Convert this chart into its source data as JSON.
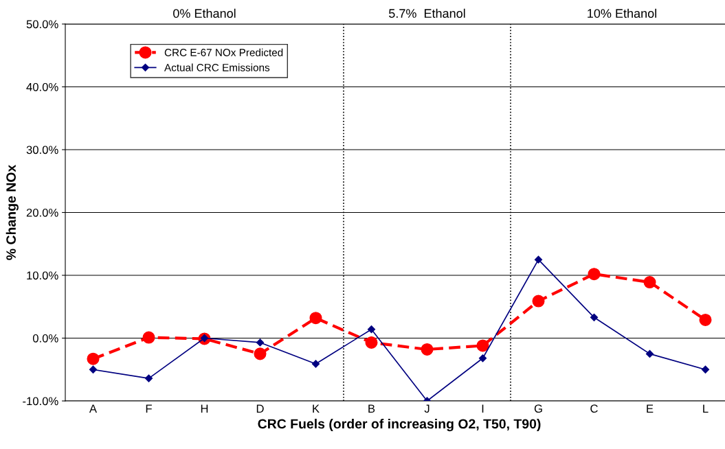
{
  "chart_data": {
    "type": "line",
    "xlabel": "CRC Fuels (order of increasing O2, T50, T90)",
    "ylabel": "% Change NOx",
    "categories": [
      "A",
      "F",
      "H",
      "D",
      "K",
      "B",
      "J",
      "I",
      "G",
      "C",
      "E",
      "L"
    ],
    "series": [
      {
        "name": "CRC E-67 NOx Predicted",
        "color": "#ff0000",
        "marker": "circle",
        "line_style": "dashed",
        "values": [
          -3.3,
          0.1,
          -0.1,
          -2.5,
          3.2,
          -0.7,
          -1.8,
          -1.2,
          5.9,
          10.2,
          8.9,
          2.9
        ]
      },
      {
        "name": "Actual CRC Emissions",
        "color": "#000080",
        "marker": "diamond",
        "line_style": "solid",
        "values": [
          -5.0,
          -6.4,
          0.0,
          -0.7,
          -4.1,
          1.4,
          -10.0,
          -3.2,
          12.5,
          3.3,
          -2.5,
          -5.0
        ]
      }
    ],
    "ylim": [
      -10,
      50
    ],
    "yticks": [
      {
        "value": -10,
        "label": "-10.0%"
      },
      {
        "value": 0,
        "label": "0.0%"
      },
      {
        "value": 10,
        "label": "10.0%"
      },
      {
        "value": 20,
        "label": "20.0%"
      },
      {
        "value": 30,
        "label": "30.0%"
      },
      {
        "value": 40,
        "label": "40.0%"
      },
      {
        "value": 50,
        "label": "50.0%"
      }
    ],
    "grid": "y",
    "legend": "top left",
    "annotations": [
      "0% Ethanol",
      "5.7%  Ethanol",
      "10% Ethanol"
    ]
  }
}
